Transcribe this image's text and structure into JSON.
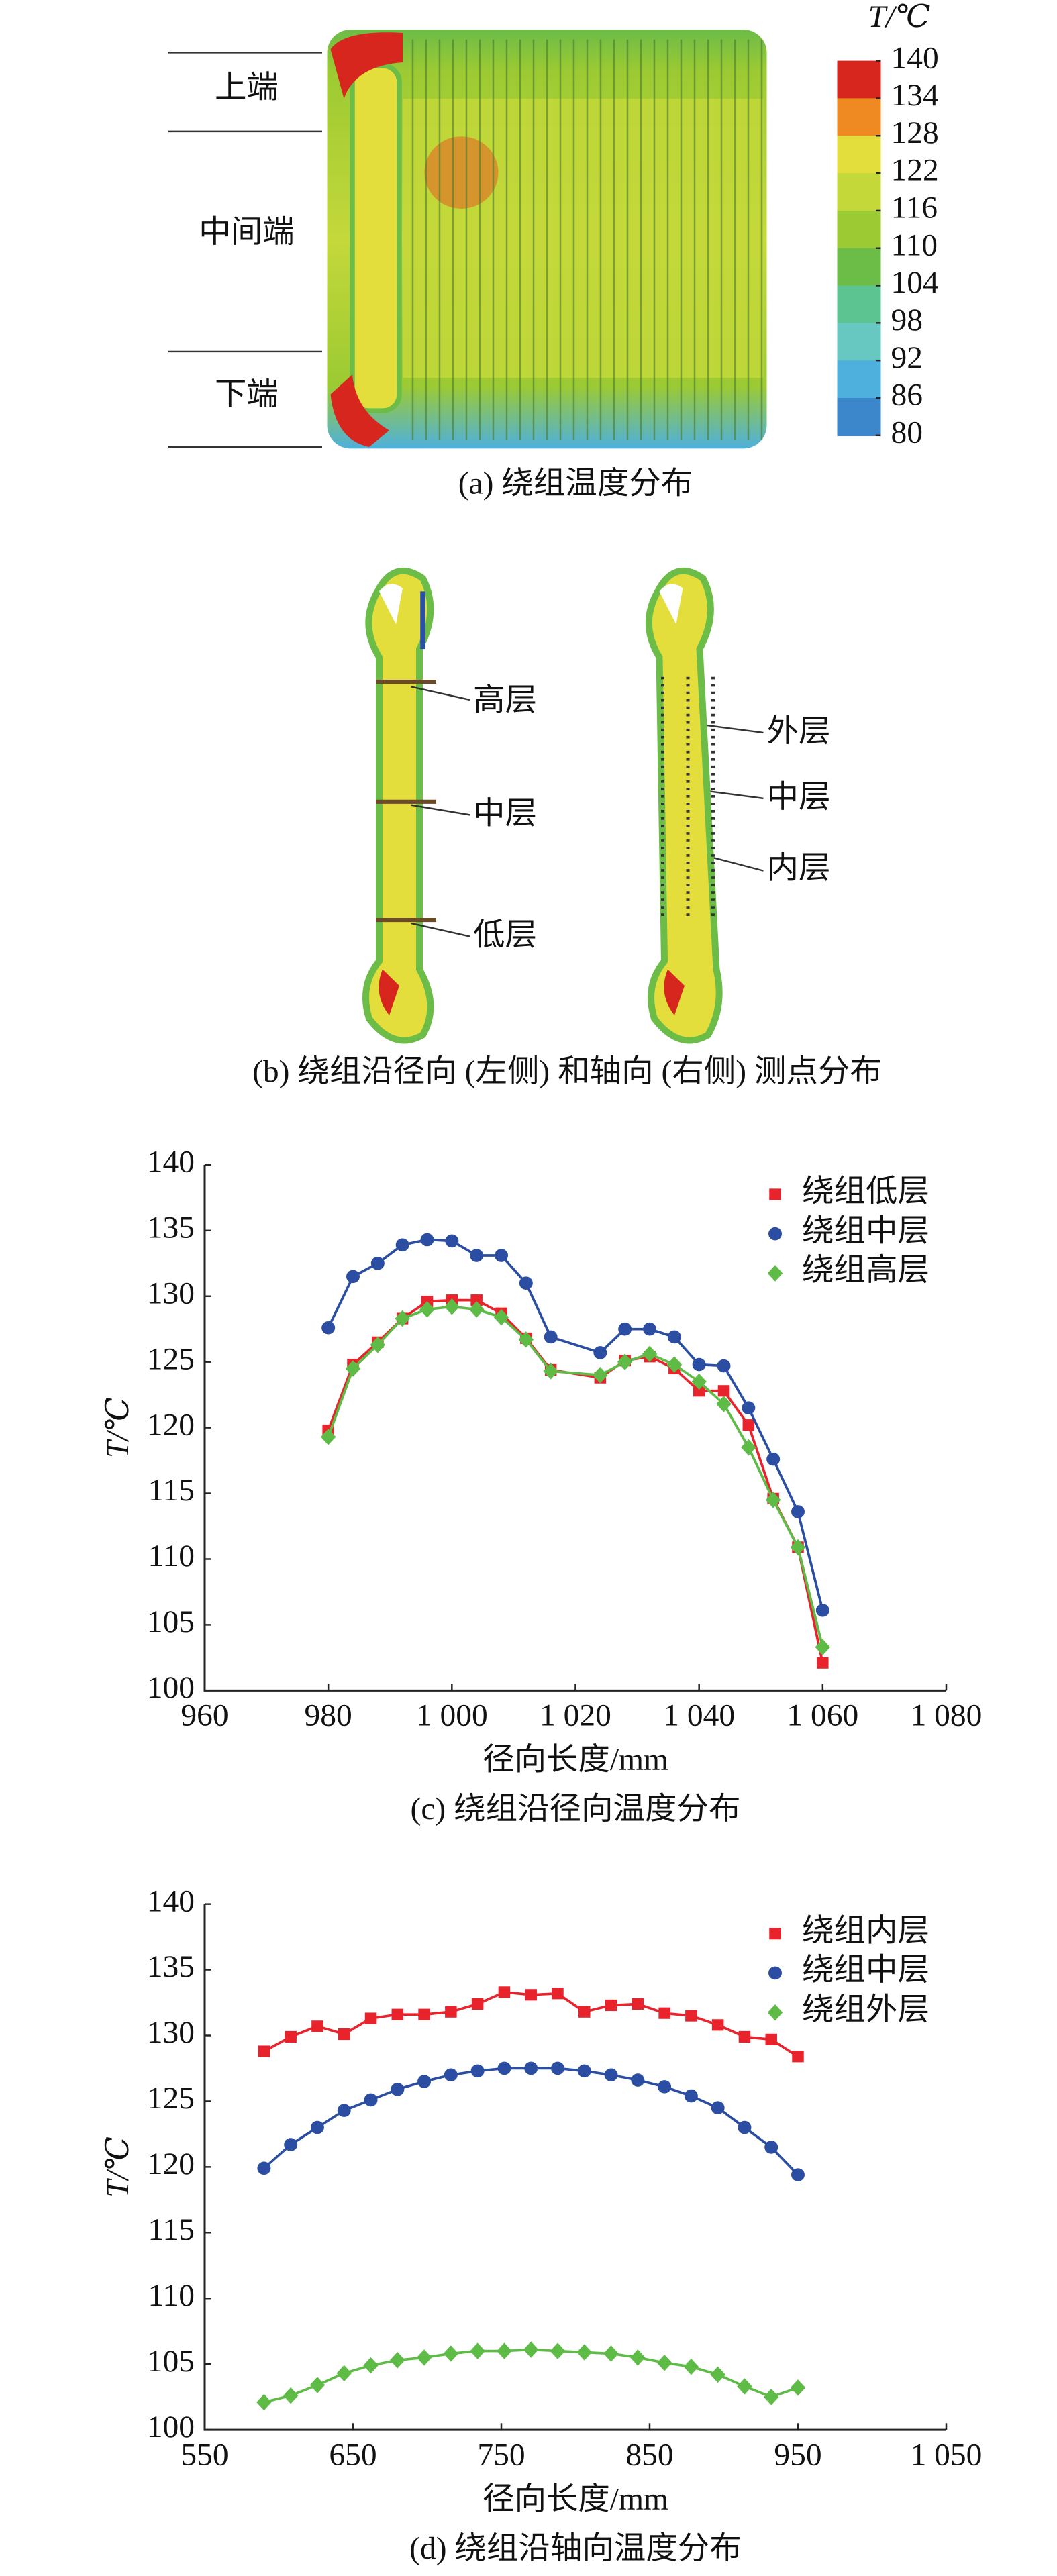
{
  "figure": {
    "panel_a": {
      "labels": [
        "上端",
        "中间端",
        "下端"
      ],
      "caption": "(a) 绕组温度分布",
      "colorbar": {
        "label": "T/℃",
        "ticks": [
          140,
          134,
          128,
          122,
          116,
          110,
          104,
          98,
          92,
          86,
          80
        ],
        "colors": [
          "#d7261e",
          "#ef8a22",
          "#e4de3c",
          "#c4d83a",
          "#9cca32",
          "#6cbc48",
          "#5cc490",
          "#66c8c0",
          "#4eb0dc",
          "#3c86cc",
          "#2a4fa6"
        ]
      }
    },
    "panel_b": {
      "left_labels": [
        "高层",
        "中层",
        "低层"
      ],
      "right_labels": [
        "外层",
        "中层",
        "内层"
      ],
      "caption": "(b) 绕组沿径向 (左侧) 和轴向 (右侧) 测点分布"
    }
  },
  "chart_data": [
    {
      "type": "line",
      "caption": "(c) 绕组沿径向温度分布",
      "xlabel": "径向长度/mm",
      "ylabel": "T/℃",
      "x": [
        980,
        984,
        988,
        992,
        996,
        1000,
        1004,
        1008,
        1012,
        1016,
        1024,
        1028,
        1032,
        1036,
        1040,
        1044,
        1048,
        1052,
        1056,
        1060
      ],
      "series": [
        {
          "name": "绕组低层",
          "color": "#e8232b",
          "marker": "square",
          "values": [
            119.8,
            124.8,
            126.5,
            128.3,
            129.6,
            129.7,
            129.7,
            128.7,
            126.8,
            124.4,
            123.8,
            125.1,
            125.4,
            124.5,
            122.8,
            122.8,
            120.2,
            114.6,
            110.9,
            102.1
          ]
        },
        {
          "name": "绕组中层",
          "color": "#2b4ea3",
          "marker": "circle",
          "values": [
            127.6,
            131.5,
            132.5,
            133.9,
            134.3,
            134.2,
            133.1,
            133.1,
            131.0,
            126.9,
            125.7,
            127.5,
            127.5,
            126.9,
            124.8,
            124.7,
            121.5,
            117.6,
            113.6,
            106.1
          ]
        },
        {
          "name": "绕组高层",
          "color": "#5dbb46",
          "marker": "diamond",
          "values": [
            119.3,
            124.5,
            126.3,
            128.3,
            129.0,
            129.2,
            129.0,
            128.4,
            126.7,
            124.3,
            124.0,
            125.0,
            125.6,
            124.8,
            123.5,
            121.8,
            118.5,
            114.5,
            110.9,
            103.3
          ]
        }
      ],
      "xlim": [
        960,
        1080
      ],
      "xticks": [
        960,
        980,
        {
          "value": 1000,
          "label": "1 000"
        },
        {
          "value": 1020,
          "label": "1 020"
        },
        {
          "value": 1040,
          "label": "1 040"
        },
        {
          "value": 1060,
          "label": "1 060"
        },
        {
          "value": 1080,
          "label": "1 080"
        }
      ],
      "ylim": [
        100,
        140
      ],
      "yticks": [
        100,
        105,
        110,
        115,
        120,
        125,
        130,
        135,
        140
      ],
      "legend": "upper right",
      "grid": false
    },
    {
      "type": "line",
      "caption": "(d) 绕组沿轴向温度分布",
      "xlabel": "径向长度/mm",
      "ylabel": "T/℃",
      "x": [
        590,
        608,
        626,
        644,
        662,
        680,
        698,
        716,
        734,
        752,
        770,
        788,
        806,
        824,
        842,
        860,
        878,
        896,
        914,
        932,
        950
      ],
      "series": [
        {
          "name": "绕组内层",
          "color": "#e8232b",
          "marker": "square",
          "values": [
            128.8,
            129.9,
            130.7,
            130.1,
            131.3,
            131.6,
            131.6,
            131.8,
            132.4,
            133.3,
            133.1,
            133.2,
            131.8,
            132.3,
            132.4,
            131.7,
            131.5,
            130.8,
            129.9,
            129.7,
            128.4
          ]
        },
        {
          "name": "绕组中层",
          "color": "#2b4ea3",
          "marker": "circle",
          "values": [
            119.9,
            121.7,
            123.0,
            124.3,
            125.1,
            125.9,
            126.5,
            127.0,
            127.3,
            127.5,
            127.5,
            127.5,
            127.3,
            127.0,
            126.6,
            126.1,
            125.4,
            124.5,
            123.0,
            121.5,
            119.4
          ]
        },
        {
          "name": "绕组外层",
          "color": "#5dbb46",
          "marker": "diamond",
          "values": [
            102.1,
            102.6,
            103.4,
            104.3,
            104.9,
            105.3,
            105.5,
            105.8,
            106.0,
            106.0,
            106.1,
            106.0,
            105.9,
            105.8,
            105.5,
            105.1,
            104.8,
            104.2,
            103.3,
            102.5,
            103.2
          ]
        }
      ],
      "xlim": [
        550,
        1050
      ],
      "xticks": [
        550,
        650,
        750,
        850,
        950,
        {
          "value": 1050,
          "label": "1 050"
        }
      ],
      "ylim": [
        100,
        140
      ],
      "yticks": [
        100,
        105,
        110,
        115,
        120,
        125,
        130,
        135,
        140
      ],
      "legend": "upper right",
      "grid": false
    }
  ]
}
